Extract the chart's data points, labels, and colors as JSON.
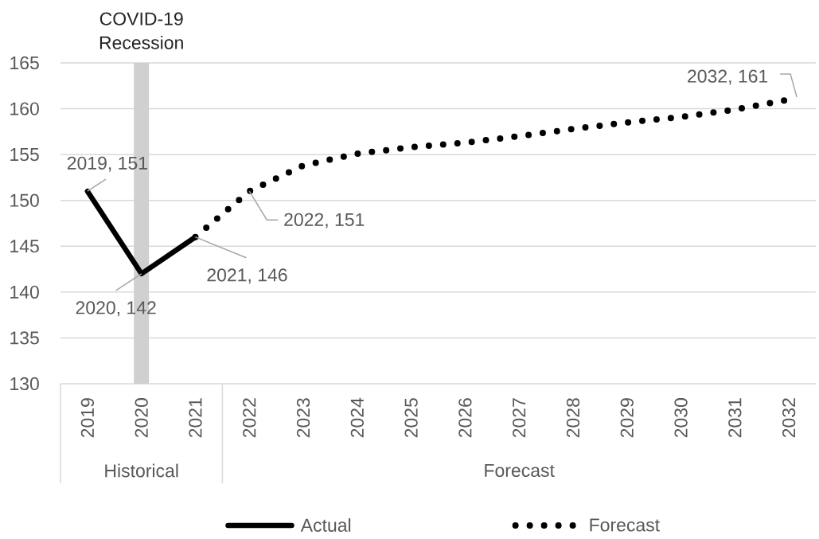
{
  "chart_data": {
    "type": "line",
    "categories": [
      "2019",
      "2020",
      "2021",
      "2022",
      "2023",
      "2024",
      "2025",
      "2026",
      "2027",
      "2028",
      "2029",
      "2030",
      "2031",
      "2032"
    ],
    "series": [
      {
        "name": "Actual",
        "color": "#000000",
        "line_style": "solid",
        "values": [
          151,
          142,
          146,
          null,
          null,
          null,
          null,
          null,
          null,
          null,
          null,
          null,
          null,
          null
        ],
        "value_labels": [
          "2019, 151",
          "2020, 142",
          "2021, 146",
          null,
          null,
          null,
          null,
          null,
          null,
          null,
          null,
          null,
          null,
          null
        ]
      },
      {
        "name": "Forecast",
        "color": "#000000",
        "line_style": "dotted",
        "values": [
          null,
          null,
          146,
          151,
          153.8,
          155.1,
          155.8,
          156.3,
          157.0,
          157.8,
          158.5,
          159.1,
          159.9,
          161
        ],
        "value_labels": [
          null,
          null,
          null,
          "2022, 151",
          null,
          null,
          null,
          null,
          null,
          null,
          null,
          null,
          null,
          "2032, 161"
        ]
      }
    ],
    "ylim": [
      130,
      165
    ],
    "yticks": [
      130,
      135,
      140,
      145,
      150,
      155,
      160,
      165
    ],
    "grid": "y",
    "legend": "bottom",
    "ref_lines": [
      {
        "axis": "x",
        "value": "2020",
        "label": "COVID-19 Recession",
        "color": "#d0d0d0"
      }
    ],
    "annotations": [
      "Historical",
      "Forecast"
    ]
  }
}
